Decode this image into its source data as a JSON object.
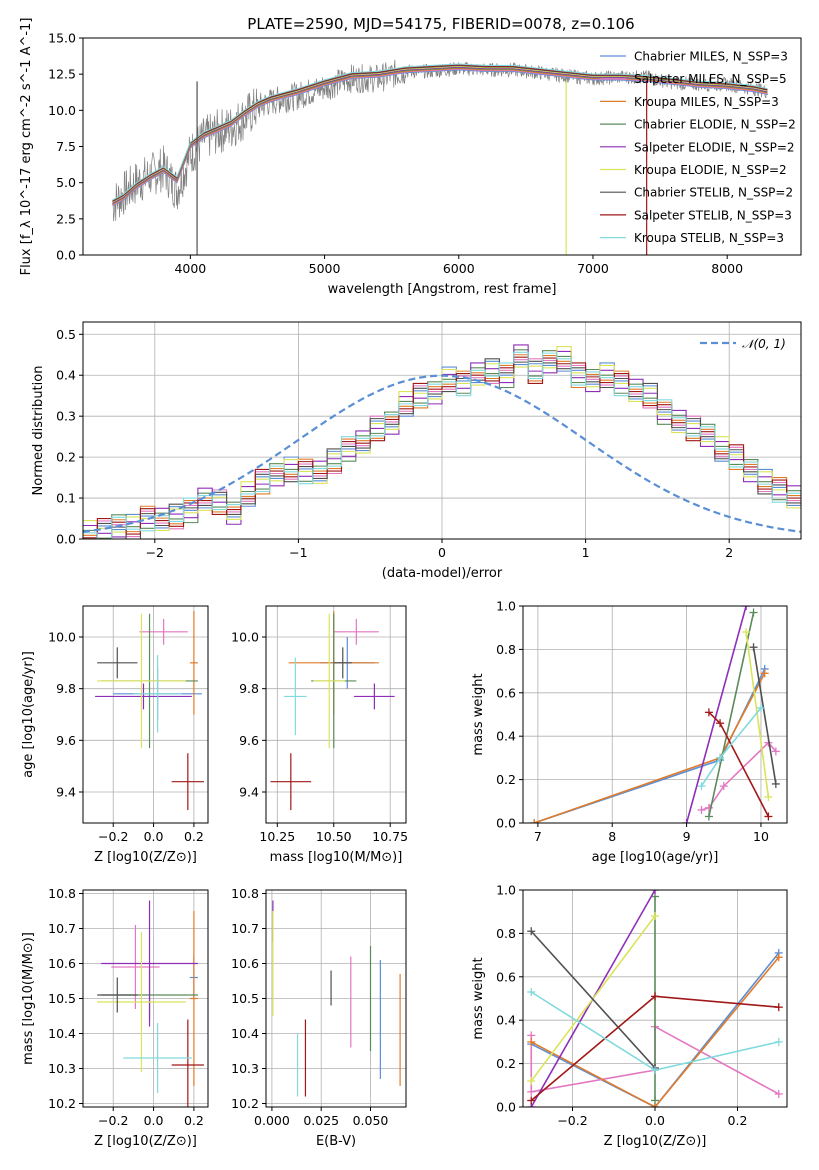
{
  "figure": {
    "title": "PLATE=2590, MJD=54175, FIBERID=0078, z=0.106"
  },
  "chart_data": [
    {
      "id": "spectrum",
      "type": "line",
      "title": "PLATE=2590, MJD=54175, FIBERID=0078, z=0.106",
      "xlabel": "wavelength [Angstrom, rest frame]",
      "ylabel": "Flux [f_λ 10^-17 erg cm^-2 s^-1 A^-1]",
      "xlim": [
        3200,
        8550
      ],
      "ylim": [
        0,
        15
      ],
      "xticks": [
        "4000",
        "5000",
        "6000",
        "7000",
        "8000"
      ],
      "yticks": [
        "0.0",
        "2.5",
        "5.0",
        "7.5",
        "10.0",
        "12.5",
        "15.0"
      ],
      "legend_position": "right",
      "data_series": {
        "name": "data",
        "color": "#808080",
        "x": [
          3420,
          3500,
          3600,
          3700,
          3800,
          3900,
          4000,
          4100,
          4200,
          4300,
          4400,
          4500,
          4600,
          4800,
          5000,
          5200,
          5400,
          5600,
          5800,
          6000,
          6200,
          6400,
          6600,
          6800,
          7000,
          7200,
          7400,
          7600,
          7800,
          8000,
          8200,
          8300
        ],
        "y": [
          3.5,
          4.2,
          5.0,
          5.5,
          6.0,
          4.5,
          7.0,
          8.0,
          8.5,
          8.8,
          9.5,
          10.2,
          10.6,
          11.0,
          11.6,
          12.2,
          12.2,
          12.7,
          12.7,
          12.9,
          12.8,
          12.8,
          12.6,
          12.4,
          12.2,
          12.3,
          12.3,
          11.9,
          11.8,
          11.8,
          11.5,
          11.3
        ]
      },
      "series": [
        {
          "name": "Chabrier MILES, N_SSP=3",
          "color": "#5a8fd6"
        },
        {
          "name": "Salpeter MILES, N_SSP=5",
          "color": "#e377c2"
        },
        {
          "name": "Kroupa MILES, N_SSP=3",
          "color": "#e07b2a"
        },
        {
          "name": "Chabrier ELODIE, N_SSP=2",
          "color": "#5b8a5b"
        },
        {
          "name": "Salpeter ELODIE, N_SSP=2",
          "color": "#8e2eb8"
        },
        {
          "name": "Kroupa ELODIE, N_SSP=2",
          "color": "#dbe35a"
        },
        {
          "name": "Chabrier STELIB, N_SSP=2",
          "color": "#505050"
        },
        {
          "name": "Salpeter STELIB, N_SSP=3",
          "color": "#a01818"
        },
        {
          "name": "Kroupa STELIB, N_SSP=3",
          "color": "#80dade"
        }
      ],
      "model_values": [
        3.6,
        4.0,
        4.8,
        5.4,
        5.9,
        5.2,
        7.6,
        8.3,
        8.7,
        9.1,
        9.8,
        10.4,
        10.8,
        11.3,
        11.9,
        12.4,
        12.5,
        12.8,
        12.9,
        13.0,
        12.9,
        12.9,
        12.7,
        12.5,
        12.3,
        12.3,
        12.2,
        12.0,
        11.8,
        11.7,
        11.5,
        11.3
      ]
    },
    {
      "id": "residuals",
      "type": "bar",
      "xlabel": "(data-model)/error",
      "ylabel": "Normed distribution",
      "xlim": [
        -2.5,
        2.5
      ],
      "ylim": [
        0,
        0.53
      ],
      "xticks": [
        "−2",
        "−1",
        "0",
        "1",
        "2"
      ],
      "yticks": [
        "0.0",
        "0.1",
        "0.2",
        "0.3",
        "0.4",
        "0.5"
      ],
      "legend": [
        {
          "name": "N(0,1)",
          "label": "𝒩(0, 1)",
          "color": "#5a8fd6",
          "style": "dashed"
        }
      ],
      "bin_edges_start": -2.5,
      "bin_width": 0.1,
      "hist_values": [
        0.015,
        0.02,
        0.035,
        0.03,
        0.05,
        0.045,
        0.055,
        0.07,
        0.1,
        0.09,
        0.06,
        0.11,
        0.14,
        0.16,
        0.17,
        0.165,
        0.16,
        0.19,
        0.22,
        0.24,
        0.27,
        0.28,
        0.33,
        0.35,
        0.36,
        0.39,
        0.38,
        0.4,
        0.41,
        0.4,
        0.45,
        0.41,
        0.43,
        0.44,
        0.4,
        0.39,
        0.4,
        0.38,
        0.36,
        0.35,
        0.31,
        0.29,
        0.27,
        0.25,
        0.22,
        0.2,
        0.17,
        0.14,
        0.12,
        0.1
      ],
      "normal_curve": {
        "mean": 0,
        "sigma": 1
      }
    },
    {
      "id": "age_vs_Z",
      "type": "scatter",
      "xlabel": "Z [log10(Z/Z⊙)]",
      "ylabel": "age  [log10(age/yr)]",
      "xlim": [
        -0.35,
        0.27
      ],
      "ylim": [
        9.28,
        10.12
      ],
      "xticks": [
        "−0.2",
        "0.0",
        "0.2"
      ],
      "yticks": [
        "9.4",
        "9.6",
        "9.8",
        "10.0"
      ],
      "points": [
        {
          "x": 0.02,
          "y": 9.78,
          "xerr": 0.22,
          "yerr": 0.1,
          "color": "#5a8fd6"
        },
        {
          "x": 0.05,
          "y": 10.02,
          "xerr": 0.12,
          "yerr": 0.05,
          "color": "#e377c2"
        },
        {
          "x": 0.2,
          "y": 9.9,
          "xerr": 0.02,
          "yerr": 0.2,
          "color": "#e07b2a"
        },
        {
          "x": -0.02,
          "y": 9.83,
          "xerr": 0.24,
          "yerr": 0.26,
          "color": "#5b8a5b"
        },
        {
          "x": -0.05,
          "y": 9.77,
          "xerr": 0.24,
          "yerr": 0.05,
          "color": "#8e2eb8"
        },
        {
          "x": -0.06,
          "y": 9.83,
          "xerr": 0.22,
          "yerr": 0.26,
          "color": "#dbe35a"
        },
        {
          "x": -0.18,
          "y": 9.9,
          "xerr": 0.1,
          "yerr": 0.06,
          "color": "#505050"
        },
        {
          "x": 0.17,
          "y": 9.44,
          "xerr": 0.08,
          "yerr": 0.11,
          "color": "#a01818"
        },
        {
          "x": 0.02,
          "y": 9.78,
          "xerr": 0.12,
          "yerr": 0.15,
          "color": "#80dade"
        }
      ]
    },
    {
      "id": "age_vs_mass",
      "type": "scatter",
      "xlabel": "mass [log10(M/M⊙)]",
      "ylabel": "",
      "xlim": [
        10.2,
        10.82
      ],
      "ylim": [
        9.28,
        10.12
      ],
      "xticks": [
        "10.25",
        "10.50",
        "10.75"
      ],
      "yticks": [
        "9.4",
        "9.6",
        "9.8",
        "10.0"
      ],
      "points": [
        {
          "x": 10.56,
          "y": 9.9,
          "xerr": 0.12,
          "yerr": 0.1,
          "color": "#5a8fd6"
        },
        {
          "x": 10.6,
          "y": 10.02,
          "xerr": 0.1,
          "yerr": 0.05,
          "color": "#e377c2"
        },
        {
          "x": 10.5,
          "y": 9.9,
          "xerr": 0.2,
          "yerr": 0.2,
          "color": "#e07b2a"
        },
        {
          "x": 10.5,
          "y": 9.83,
          "xerr": 0.1,
          "yerr": 0.26,
          "color": "#5b8a5b"
        },
        {
          "x": 10.68,
          "y": 9.77,
          "xerr": 0.09,
          "yerr": 0.05,
          "color": "#8e2eb8"
        },
        {
          "x": 10.48,
          "y": 9.83,
          "xerr": 0.07,
          "yerr": 0.26,
          "color": "#dbe35a"
        },
        {
          "x": 10.54,
          "y": 9.9,
          "xerr": 0.04,
          "yerr": 0.06,
          "color": "#505050"
        },
        {
          "x": 10.31,
          "y": 9.44,
          "xerr": 0.09,
          "yerr": 0.11,
          "color": "#a01818"
        },
        {
          "x": 10.33,
          "y": 9.77,
          "xerr": 0.05,
          "yerr": 0.15,
          "color": "#80dade"
        }
      ]
    },
    {
      "id": "weight_vs_age",
      "type": "line",
      "xlabel": "age  [log10(age/yr)]",
      "ylabel": "mass weight",
      "xlim": [
        6.8,
        10.35
      ],
      "ylim": [
        0,
        1
      ],
      "xticks": [
        "7",
        "8",
        "9",
        "10"
      ],
      "yticks": [
        "0.0",
        "0.2",
        "0.4",
        "0.6",
        "0.8",
        "1.0"
      ],
      "series": [
        {
          "color": "#5a8fd6",
          "x": [
            6.95,
            9.45,
            10.05
          ],
          "y": [
            0.0,
            0.29,
            0.71
          ]
        },
        {
          "color": "#e377c2",
          "x": [
            9.2,
            9.3,
            9.5,
            10.1,
            10.2
          ],
          "y": [
            0.06,
            0.07,
            0.17,
            0.37,
            0.33
          ]
        },
        {
          "color": "#e07b2a",
          "x": [
            6.95,
            9.45,
            10.05
          ],
          "y": [
            0.0,
            0.3,
            0.69
          ]
        },
        {
          "color": "#5b8a5b",
          "x": [
            9.3,
            9.9
          ],
          "y": [
            0.03,
            0.97
          ]
        },
        {
          "color": "#8e2eb8",
          "x": [
            9.0,
            9.8
          ],
          "y": [
            0.0,
            1.0
          ]
        },
        {
          "color": "#dbe35a",
          "x": [
            9.8,
            10.1
          ],
          "y": [
            0.88,
            0.12
          ]
        },
        {
          "color": "#505050",
          "x": [
            9.9,
            10.2
          ],
          "y": [
            0.81,
            0.18
          ]
        },
        {
          "color": "#a01818",
          "x": [
            9.3,
            9.45,
            10.1
          ],
          "y": [
            0.51,
            0.46,
            0.03
          ]
        },
        {
          "color": "#80dade",
          "x": [
            9.2,
            9.45,
            10.0
          ],
          "y": [
            0.17,
            0.3,
            0.53
          ]
        }
      ]
    },
    {
      "id": "mass_vs_Z",
      "type": "scatter",
      "xlabel": "Z [log10(Z/Z⊙)]",
      "ylabel": "mass [log10(M/M⊙)]",
      "xlim": [
        -0.35,
        0.27
      ],
      "ylim": [
        10.19,
        10.81
      ],
      "xticks": [
        "−0.2",
        "0.0",
        "0.2"
      ],
      "yticks": [
        "10.2",
        "10.3",
        "10.4",
        "10.5",
        "10.6",
        "10.7",
        "10.8"
      ],
      "points": [
        {
          "x": 0.2,
          "y": 10.56,
          "xerr": 0.02,
          "yerr": 0.06,
          "color": "#5a8fd6"
        },
        {
          "x": -0.09,
          "y": 10.59,
          "xerr": 0.12,
          "yerr": 0.12,
          "color": "#e377c2"
        },
        {
          "x": 0.2,
          "y": 10.5,
          "xerr": 0.02,
          "yerr": 0.25,
          "color": "#e07b2a"
        },
        {
          "x": -0.02,
          "y": 10.51,
          "xerr": 0.24,
          "yerr": 0.07,
          "color": "#5b8a5b"
        },
        {
          "x": -0.02,
          "y": 10.6,
          "xerr": 0.24,
          "yerr": 0.18,
          "color": "#8e2eb8"
        },
        {
          "x": -0.06,
          "y": 10.49,
          "xerr": 0.22,
          "yerr": 0.2,
          "color": "#dbe35a"
        },
        {
          "x": -0.18,
          "y": 10.51,
          "xerr": 0.1,
          "yerr": 0.05,
          "color": "#505050"
        },
        {
          "x": 0.17,
          "y": 10.31,
          "xerr": 0.08,
          "yerr": 0.13,
          "color": "#a01818"
        },
        {
          "x": 0.02,
          "y": 10.33,
          "xerr": 0.17,
          "yerr": 0.1,
          "color": "#80dade"
        }
      ]
    },
    {
      "id": "mass_vs_ebv",
      "type": "scatter",
      "xlabel": "E(B-V)",
      "ylabel": "",
      "xlim": [
        -0.003,
        0.068
      ],
      "ylim": [
        10.19,
        10.81
      ],
      "xticks": [
        "0.000",
        "0.025",
        "0.050"
      ],
      "yticks": [
        "10.2",
        "10.3",
        "10.4",
        "10.5",
        "10.6",
        "10.7",
        "10.8"
      ],
      "points": [
        {
          "x": 0.055,
          "y": 10.44,
          "yerr": 0.17,
          "color": "#5a8fd6"
        },
        {
          "x": 0.04,
          "y": 10.49,
          "yerr": 0.13,
          "color": "#e377c2"
        },
        {
          "x": 0.065,
          "y": 10.41,
          "yerr": 0.16,
          "color": "#e07b2a"
        },
        {
          "x": 0.05,
          "y": 10.5,
          "yerr": 0.15,
          "color": "#5b8a5b"
        },
        {
          "x": 0.0005,
          "y": 10.72,
          "yerr": 0.06,
          "color": "#8e2eb8"
        },
        {
          "x": 0.0005,
          "y": 10.6,
          "yerr": 0.15,
          "color": "#dbe35a"
        },
        {
          "x": 0.03,
          "y": 10.53,
          "yerr": 0.05,
          "color": "#505050"
        },
        {
          "x": 0.017,
          "y": 10.33,
          "yerr": 0.11,
          "color": "#a01818"
        },
        {
          "x": 0.013,
          "y": 10.31,
          "yerr": 0.09,
          "color": "#80dade"
        }
      ]
    },
    {
      "id": "weight_vs_Z",
      "type": "line",
      "xlabel": "Z [log10(Z/Z⊙)]",
      "ylabel": "mass weight",
      "xlim": [
        -0.32,
        0.32
      ],
      "ylim": [
        0,
        1
      ],
      "xticks": [
        "−0.2",
        "0.0",
        "0.2"
      ],
      "yticks": [
        "0.0",
        "0.2",
        "0.4",
        "0.6",
        "0.8",
        "1.0"
      ],
      "series": [
        {
          "color": "#5a8fd6",
          "x": [
            -0.3,
            0.0,
            0.3
          ],
          "y": [
            0.29,
            0.0,
            0.71
          ]
        },
        {
          "color": "#e377c2",
          "x": [
            -0.3,
            -0.3,
            0.0,
            0.0,
            0.3
          ],
          "y": [
            0.33,
            0.07,
            0.17,
            0.37,
            0.06
          ]
        },
        {
          "color": "#e07b2a",
          "x": [
            -0.3,
            0.0,
            0.3
          ],
          "y": [
            0.3,
            0.0,
            0.69
          ]
        },
        {
          "color": "#5b8a5b",
          "x": [
            0.0,
            0.0
          ],
          "y": [
            0.03,
            0.97
          ]
        },
        {
          "color": "#8e2eb8",
          "x": [
            -0.3,
            0.0
          ],
          "y": [
            0.0,
            1.0
          ]
        },
        {
          "color": "#dbe35a",
          "x": [
            -0.3,
            0.0
          ],
          "y": [
            0.12,
            0.88
          ]
        },
        {
          "color": "#505050",
          "x": [
            -0.3,
            0.0
          ],
          "y": [
            0.81,
            0.18
          ]
        },
        {
          "color": "#a01818",
          "x": [
            -0.3,
            0.0,
            0.3
          ],
          "y": [
            0.03,
            0.51,
            0.46
          ]
        },
        {
          "color": "#80dade",
          "x": [
            -0.3,
            0.0,
            0.3
          ],
          "y": [
            0.53,
            0.17,
            0.3
          ]
        }
      ]
    }
  ]
}
